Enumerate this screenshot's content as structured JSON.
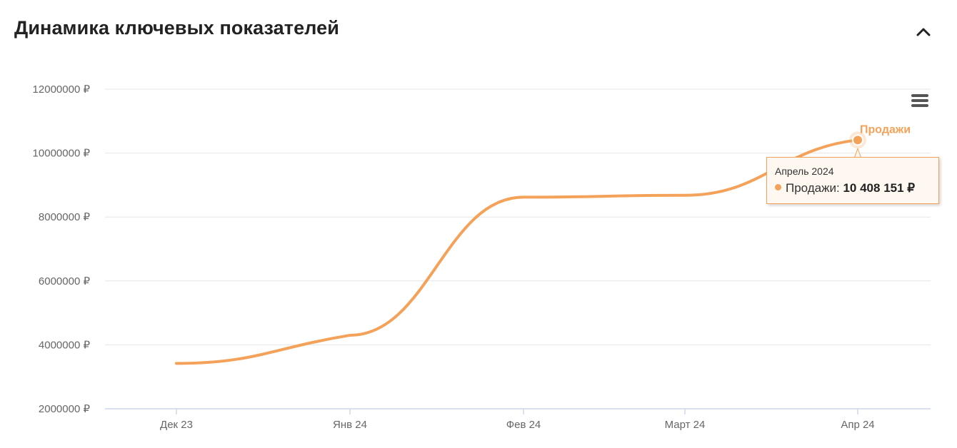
{
  "header": {
    "title": "Динамика ключевых показателей",
    "collapse_icon": "chevron-up-icon"
  },
  "menu_icon": "hamburger-menu-icon",
  "colors": {
    "series": "#f4a259",
    "grid": "#e6e6e6",
    "axis": "#ccd6eb",
    "text": "#666666"
  },
  "chart_data": {
    "type": "line",
    "title": "",
    "xlabel": "",
    "ylabel": "",
    "categories": [
      "Дек 23",
      "Янв 24",
      "Фев 24",
      "Март 24",
      "Апр 24"
    ],
    "series": [
      {
        "name": "Продажи",
        "values": [
          3420000,
          4300000,
          8620000,
          8680000,
          10408151
        ]
      }
    ],
    "ylim": [
      2000000,
      12000000
    ],
    "yticks": [
      "12000000 ₽",
      "10000000 ₽",
      "8000000 ₽",
      "6000000 ₽",
      "4000000 ₽",
      "2000000 ₽"
    ],
    "ytick_values": [
      12000000,
      10000000,
      8000000,
      6000000,
      4000000,
      2000000
    ],
    "grid": true,
    "legend": "none",
    "data_label": "Продажи"
  },
  "tooltip": {
    "date": "Апрель 2024",
    "series_label": "Продажи:",
    "value": "10 408 151 ₽"
  }
}
